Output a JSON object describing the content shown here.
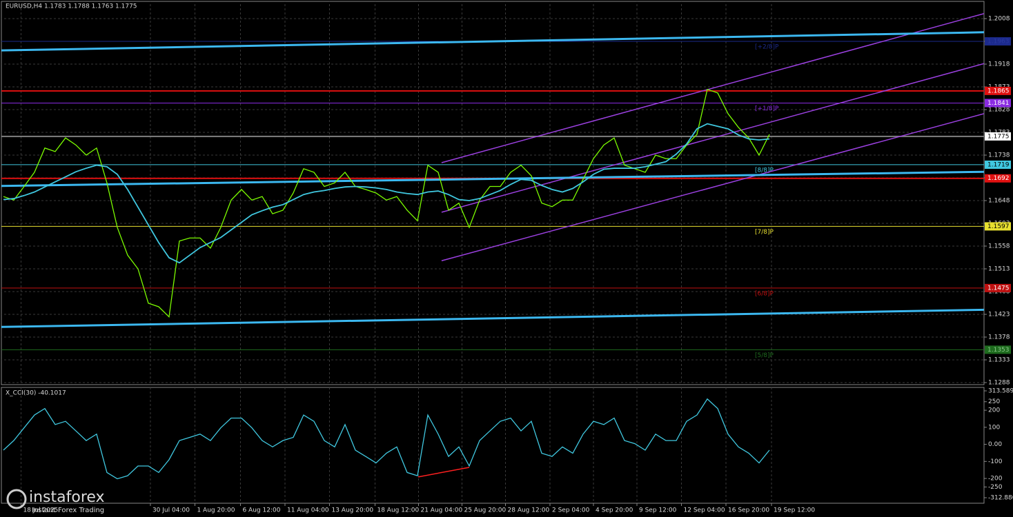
{
  "chart_data": [
    {
      "type": "line",
      "title": "EURUSD,H4  1.1783 1.1788 1.1763 1.1775",
      "xlim": [
        -0.33,
        94.73
      ],
      "ylim": [
        1.1288,
        1.2008
      ],
      "yticks": [
        1.2008,
        1.1963,
        1.1918,
        1.1873,
        1.1828,
        1.1783,
        1.1738,
        1.1693,
        1.1648,
        1.1603,
        1.1558,
        1.1513,
        1.1468,
        1.1423,
        1.1378,
        1.1333,
        1.1288
      ],
      "xticks": [
        {
          "value": 1.7,
          "label": "18 Jul 2025"
        },
        {
          "value": 14.2,
          "label": "30 Jul 04:00"
        },
        {
          "value": 18.5,
          "label": "1 Aug 20:00"
        },
        {
          "value": 22.9,
          "label": "6 Aug 12:00"
        },
        {
          "value": 27.2,
          "label": "11 Aug 04:00"
        },
        {
          "value": 31.5,
          "label": "13 Aug 20:00"
        },
        {
          "value": 35.9,
          "label": "18 Aug 12:00"
        },
        {
          "value": 40.1,
          "label": "21 Aug 04:00"
        },
        {
          "value": 44.3,
          "label": "25 Aug 20:00"
        },
        {
          "value": 48.5,
          "label": "28 Aug 12:00"
        },
        {
          "value": 52.8,
          "label": "2 Sep 04:00"
        },
        {
          "value": 57,
          "label": "4 Sep 20:00"
        },
        {
          "value": 61.2,
          "label": "9 Sep 12:00"
        },
        {
          "value": 65.5,
          "label": "12 Sep 04:00"
        },
        {
          "value": 69.8,
          "label": "16 Sep 20:00"
        },
        {
          "value": 74.2,
          "label": "19 Sep 12:00"
        }
      ],
      "grid": true,
      "series": [
        {
          "name": "EURUSD",
          "color": "#7cfc00",
          "values": [
            1.1656,
            1.1649,
            1.1676,
            1.1704,
            1.1752,
            1.1745,
            1.1772,
            1.1758,
            1.1738,
            1.1752,
            1.1683,
            1.1595,
            1.154,
            1.1513,
            1.1445,
            1.1438,
            1.1418,
            1.1568,
            1.1574,
            1.1574,
            1.1554,
            1.1595,
            1.1649,
            1.167,
            1.1649,
            1.1656,
            1.1622,
            1.1629,
            1.1663,
            1.1711,
            1.1704,
            1.1676,
            1.1683,
            1.1704,
            1.1676,
            1.167,
            1.1663,
            1.1649,
            1.1656,
            1.1629,
            1.1608,
            1.1718,
            1.1704,
            1.1629,
            1.1643,
            1.1595,
            1.1649,
            1.1676,
            1.1676,
            1.1704,
            1.1718,
            1.1697,
            1.1643,
            1.1636,
            1.1649,
            1.1649,
            1.169,
            1.1731,
            1.1758,
            1.1772,
            1.1718,
            1.1711,
            1.1704,
            1.1738,
            1.1731,
            1.1731,
            1.1758,
            1.1779,
            1.1868,
            1.1861,
            1.182,
            1.1793,
            1.1772,
            1.1738,
            1.1779
          ]
        },
        {
          "name": "MA",
          "color": "#40c8e0",
          "values": [
            1.165,
            1.1652,
            1.1658,
            1.1665,
            1.1675,
            1.1685,
            1.1695,
            1.1705,
            1.1712,
            1.1718,
            1.1715,
            1.17,
            1.167,
            1.1635,
            1.16,
            1.1565,
            1.1535,
            1.1525,
            1.154,
            1.1555,
            1.1565,
            1.1575,
            1.159,
            1.1605,
            1.162,
            1.1628,
            1.1635,
            1.164,
            1.165,
            1.166,
            1.1665,
            1.1668,
            1.1672,
            1.1675,
            1.1676,
            1.1675,
            1.1673,
            1.167,
            1.1665,
            1.1662,
            1.166,
            1.1665,
            1.1667,
            1.166,
            1.165,
            1.1648,
            1.1652,
            1.166,
            1.1668,
            1.168,
            1.169,
            1.1688,
            1.1678,
            1.167,
            1.1665,
            1.1672,
            1.1685,
            1.17,
            1.171,
            1.1712,
            1.1712,
            1.1712,
            1.1715,
            1.172,
            1.1725,
            1.174,
            1.176,
            1.179,
            1.18,
            1.1795,
            1.179,
            1.1778,
            1.177,
            1.1768,
            1.177
          ]
        }
      ],
      "levels": [
        {
          "price": 1.1963,
          "name": "[+2/8]P",
          "color": "#1c2a8c",
          "text_color": "#2a3aa0"
        },
        {
          "price": 1.1865,
          "color": "#e01010",
          "text_color": "#ffffff"
        },
        {
          "price": 1.1841,
          "name": "[+1/8]P",
          "color": "#8a2be2",
          "text_color": "#ffffff"
        },
        {
          "price": 1.1775,
          "color": "#808080",
          "text_color": "#000000",
          "box": "#ffffff"
        },
        {
          "price": 1.1719,
          "name": "[8/8]P",
          "color": "#40c8e0",
          "text_color": "#000000"
        },
        {
          "price": 1.1692,
          "color": "#e01010",
          "text_color": "#ffffff"
        },
        {
          "price": 1.1597,
          "name": "[7/8]P",
          "color": "#e8e030",
          "text_color": "#000000"
        },
        {
          "price": 1.1475,
          "name": "[6/8]P",
          "color": "#c01010",
          "text_color": "#ffffff"
        },
        {
          "price": 1.1353,
          "name": "[5/8]P",
          "color": "#1e6b1e",
          "text_color": "#8bc88b"
        }
      ],
      "lines": [
        {
          "color": "#9b40e0",
          "points": [
            [
              42.33,
              1.1723
            ],
            [
              94.73,
              1.2018
            ]
          ]
        },
        {
          "color": "#9b40e0",
          "points": [
            [
              42.33,
              1.1625
            ],
            [
              94.73,
              1.1919
            ]
          ]
        },
        {
          "color": "#9b40e0",
          "points": [
            [
              42.33,
              1.1529
            ],
            [
              94.73,
              1.182
            ]
          ]
        },
        {
          "color": "#3cb8f0",
          "points": [
            [
              -0.33,
              1.1945
            ],
            [
              94.73,
              1.1981
            ]
          ]
        },
        {
          "color": "#3cb8f0",
          "points": [
            [
              -0.33,
              1.1677
            ],
            [
              94.73,
              1.1705
            ]
          ]
        },
        {
          "color": "#3cb8f0",
          "points": [
            [
              -0.33,
              1.1398
            ],
            [
              94.73,
              1.1432
            ]
          ]
        }
      ],
      "watermark": "instaforex",
      "watermark_sub": "Instant Forex Trading"
    },
    {
      "type": "line",
      "title": "X_CCI(30) -40.1017",
      "xlim": [
        -0.33,
        94.73
      ],
      "ylim": [
        -312.88,
        313.5897
      ],
      "yticks": [
        {
          "value": 313.5897,
          "label": "313.5897"
        },
        250,
        200,
        100,
        {
          "value": 0,
          "label": "0.00"
        },
        -100,
        -200,
        -250,
        {
          "value": -312.88,
          "label": "-312.8800"
        }
      ],
      "series": [
        {
          "name": "CCI",
          "color": "#40c8e0",
          "values": [
            -34,
            22,
            97,
            172,
            210,
            116,
            135,
            79,
            22,
            60,
            -165,
            -202,
            -184,
            -127,
            -127,
            -165,
            -90,
            22,
            41,
            60,
            22,
            97,
            154,
            154,
            97,
            22,
            -15,
            22,
            41,
            172,
            135,
            22,
            -15,
            116,
            -34,
            -71,
            -109,
            -52,
            -15,
            -165,
            -184,
            172,
            60,
            -71,
            -15,
            -127,
            22,
            79,
            135,
            154,
            79,
            135,
            -52,
            -71,
            -15,
            -52,
            60,
            135,
            116,
            154,
            22,
            4,
            -34,
            60,
            22,
            22,
            135,
            172,
            266,
            210,
            60,
            -15,
            -52,
            -109,
            -34
          ]
        }
      ],
      "lines": [
        {
          "color": "#ff2020",
          "points": [
            [
              40.07,
              -191
            ],
            [
              45,
              -135
            ]
          ]
        }
      ]
    }
  ]
}
